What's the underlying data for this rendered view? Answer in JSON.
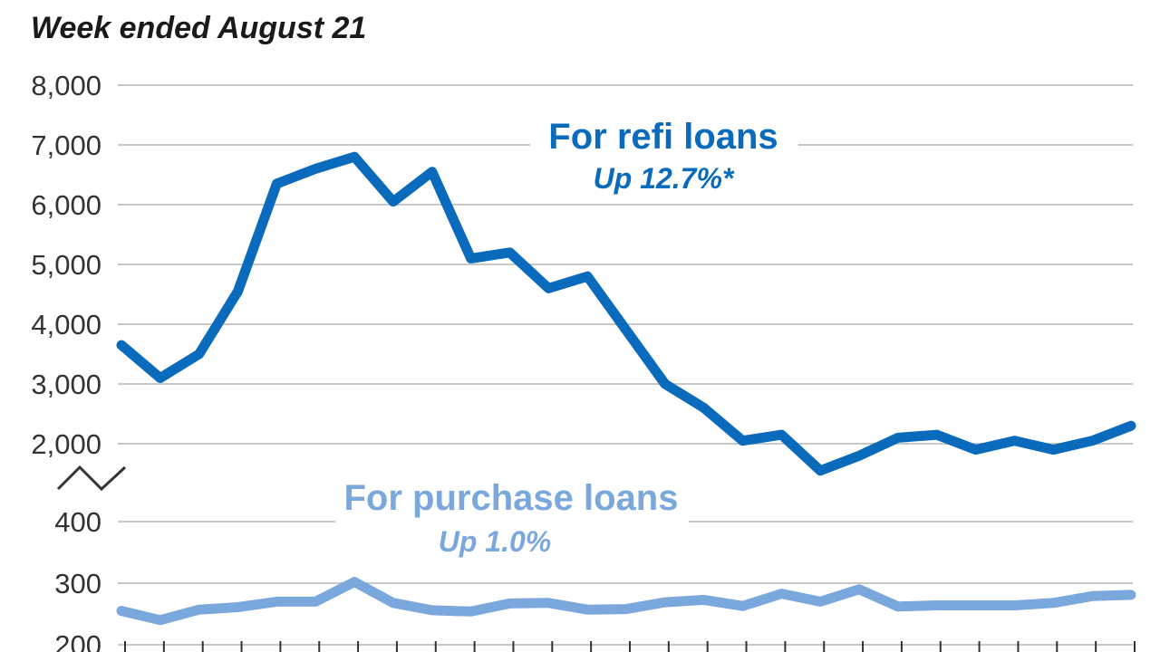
{
  "chart_data": {
    "type": "line",
    "title": "Week ended August 21",
    "xlabel": "",
    "ylabel": "",
    "grid": true,
    "panels": [
      {
        "name": "refi",
        "ylim": [
          2000,
          8000
        ],
        "yticks": [
          2000,
          3000,
          4000,
          5000,
          6000,
          7000,
          8000
        ],
        "ytick_labels": [
          "2,000",
          "3,000",
          "4,000",
          "5,000",
          "6,000",
          "7,000",
          "8,000"
        ],
        "axis_break_below": true
      },
      {
        "name": "purchase",
        "ylim": [
          200,
          400
        ],
        "yticks": [
          200,
          300,
          400
        ],
        "ytick_labels": [
          "200",
          "300",
          "400"
        ]
      }
    ],
    "series": [
      {
        "name": "For refi loans",
        "annotation": "Up 12.7%*",
        "color": "#0a6bbd",
        "panel": "refi",
        "values": [
          3650,
          3100,
          3500,
          4550,
          6350,
          6600,
          6800,
          6050,
          6550,
          5100,
          5200,
          4600,
          4800,
          3900,
          3000,
          2600,
          2050,
          2150,
          1550,
          1800,
          2100,
          2150,
          1900,
          2050,
          1900,
          2050,
          2300
        ]
      },
      {
        "name": "For purchase loans",
        "annotation": "Up 1.0%",
        "color": "#7aa7dc",
        "panel": "purchase",
        "values": [
          255,
          240,
          257,
          261,
          270,
          270,
          302,
          268,
          256,
          254,
          267,
          268,
          257,
          258,
          269,
          273,
          263,
          283,
          270,
          290,
          262,
          264,
          264,
          264,
          268,
          279,
          281
        ]
      }
    ]
  }
}
